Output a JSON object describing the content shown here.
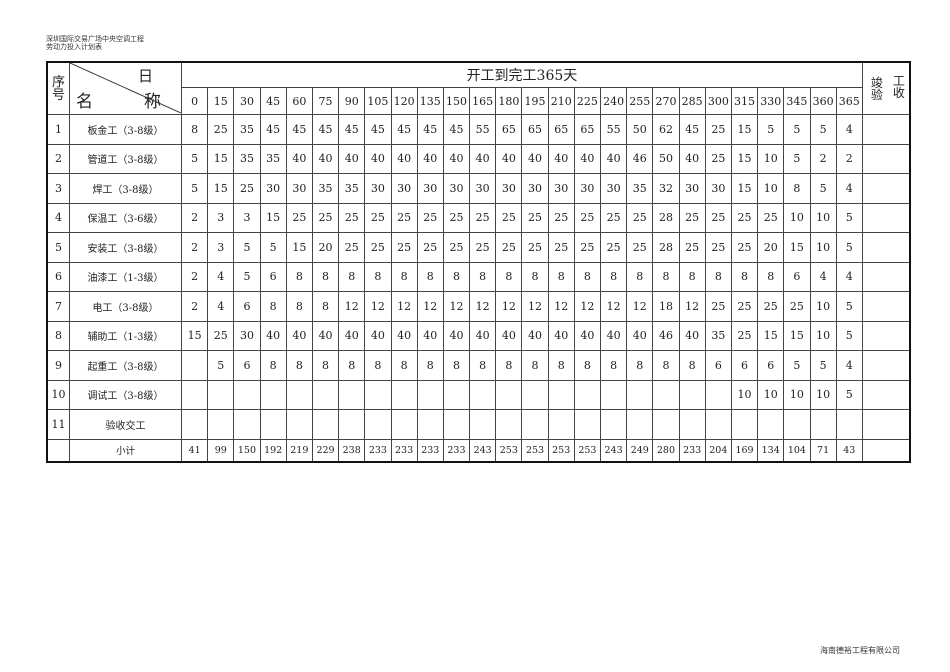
{
  "header": {
    "project": "深圳国际交易广场中央空调工程",
    "subtitle": "劳动力投入计划表"
  },
  "table": {
    "seq_header": "序号",
    "diag_top": "日",
    "diag_bottom_left": "名",
    "diag_bottom_right": "称",
    "span_title": "开工到完工365天",
    "acceptance_header_a": "竣验",
    "acceptance_header_b": "工收",
    "days": [
      "0",
      "15",
      "30",
      "45",
      "60",
      "75",
      "90",
      "105",
      "120",
      "135",
      "150",
      "165",
      "180",
      "195",
      "210",
      "225",
      "240",
      "255",
      "270",
      "285",
      "300",
      "315",
      "330",
      "345",
      "360",
      "365"
    ],
    "rows": [
      {
        "seq": "1",
        "name": "板金工（3-8级）",
        "values": [
          "8",
          "25",
          "35",
          "45",
          "45",
          "45",
          "45",
          "45",
          "45",
          "45",
          "45",
          "55",
          "65",
          "65",
          "65",
          "65",
          "55",
          "50",
          "62",
          "45",
          "25",
          "15",
          "5",
          "5",
          "5",
          "4"
        ]
      },
      {
        "seq": "2",
        "name": "管道工（3-8级）",
        "values": [
          "5",
          "15",
          "35",
          "35",
          "40",
          "40",
          "40",
          "40",
          "40",
          "40",
          "40",
          "40",
          "40",
          "40",
          "40",
          "40",
          "40",
          "46",
          "50",
          "40",
          "25",
          "15",
          "10",
          "5",
          "2",
          "2"
        ]
      },
      {
        "seq": "3",
        "name": "焊工（3-8级）",
        "values": [
          "5",
          "15",
          "25",
          "30",
          "30",
          "35",
          "35",
          "30",
          "30",
          "30",
          "30",
          "30",
          "30",
          "30",
          "30",
          "30",
          "30",
          "35",
          "32",
          "30",
          "30",
          "15",
          "10",
          "8",
          "5",
          "4"
        ]
      },
      {
        "seq": "4",
        "name": "保温工（3-6级）",
        "values": [
          "2",
          "3",
          "3",
          "15",
          "25",
          "25",
          "25",
          "25",
          "25",
          "25",
          "25",
          "25",
          "25",
          "25",
          "25",
          "25",
          "25",
          "25",
          "28",
          "25",
          "25",
          "25",
          "25",
          "10",
          "10",
          "5"
        ]
      },
      {
        "seq": "5",
        "name": "安装工（3-8级）",
        "values": [
          "2",
          "3",
          "5",
          "5",
          "15",
          "20",
          "25",
          "25",
          "25",
          "25",
          "25",
          "25",
          "25",
          "25",
          "25",
          "25",
          "25",
          "25",
          "28",
          "25",
          "25",
          "25",
          "20",
          "15",
          "10",
          "5"
        ]
      },
      {
        "seq": "6",
        "name": "油漆工（1-3级）",
        "values": [
          "2",
          "4",
          "5",
          "6",
          "8",
          "8",
          "8",
          "8",
          "8",
          "8",
          "8",
          "8",
          "8",
          "8",
          "8",
          "8",
          "8",
          "8",
          "8",
          "8",
          "8",
          "8",
          "8",
          "6",
          "4",
          "4"
        ]
      },
      {
        "seq": "7",
        "name": "电工（3-8级）",
        "values": [
          "2",
          "4",
          "6",
          "8",
          "8",
          "8",
          "12",
          "12",
          "12",
          "12",
          "12",
          "12",
          "12",
          "12",
          "12",
          "12",
          "12",
          "12",
          "18",
          "12",
          "25",
          "25",
          "25",
          "25",
          "10",
          "5"
        ]
      },
      {
        "seq": "8",
        "name": "辅助工（1-3级）",
        "values": [
          "15",
          "25",
          "30",
          "40",
          "40",
          "40",
          "40",
          "40",
          "40",
          "40",
          "40",
          "40",
          "40",
          "40",
          "40",
          "40",
          "40",
          "40",
          "46",
          "40",
          "35",
          "25",
          "15",
          "15",
          "10",
          "5"
        ]
      },
      {
        "seq": "9",
        "name": "起重工（3-8级）",
        "values": [
          "",
          "5",
          "6",
          "8",
          "8",
          "8",
          "8",
          "8",
          "8",
          "8",
          "8",
          "8",
          "8",
          "8",
          "8",
          "8",
          "8",
          "8",
          "8",
          "8",
          "6",
          "6",
          "6",
          "5",
          "5",
          "4"
        ]
      },
      {
        "seq": "10",
        "name": "调试工（3-8级）",
        "values": [
          "",
          "",
          "",
          "",
          "",
          "",
          "",
          "",
          "",
          "",
          "",
          "",
          "",
          "",
          "",
          "",
          "",
          "",
          "",
          "",
          "",
          "10",
          "10",
          "10",
          "10",
          "5"
        ]
      },
      {
        "seq": "11",
        "name": "验收交工",
        "values": [
          "",
          "",
          "",
          "",
          "",
          "",
          "",
          "",
          "",
          "",
          "",
          "",
          "",
          "",
          "",
          "",
          "",
          "",
          "",
          "",
          "",
          "",
          "",
          "",
          "",
          ""
        ]
      }
    ],
    "subtotal_label": "小计",
    "subtotals": [
      "41",
      "99",
      "150",
      "192",
      "219",
      "229",
      "238",
      "233",
      "233",
      "233",
      "233",
      "243",
      "253",
      "253",
      "253",
      "253",
      "243",
      "249",
      "280",
      "233",
      "204",
      "169",
      "134",
      "104",
      "71",
      "43"
    ]
  },
  "footer": {
    "company": "海南德裕工程有限公司"
  }
}
